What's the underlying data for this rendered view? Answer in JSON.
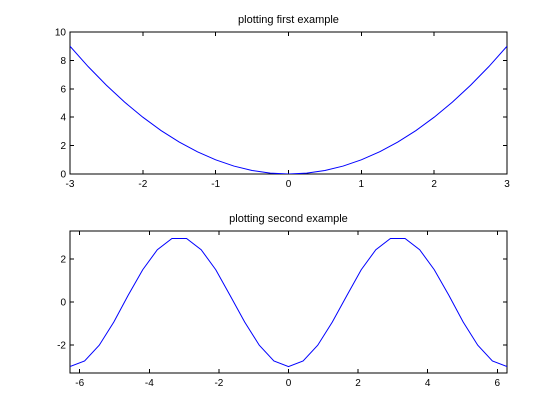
{
  "chart_data": [
    {
      "type": "line",
      "title": "plotting first example",
      "xlabel": "",
      "ylabel": "",
      "xlim": [
        -3,
        3
      ],
      "ylim": [
        0,
        10
      ],
      "grid": false,
      "line_color": "#0000ff",
      "x_ticks": [
        -3,
        -2,
        -1,
        0,
        1,
        2,
        3
      ],
      "y_ticks": [
        0,
        2,
        4,
        6,
        8,
        10
      ],
      "series": [
        {
          "x": [
            -3,
            -2.75,
            -2.5,
            -2.25,
            -2,
            -1.75,
            -1.5,
            -1.25,
            -1,
            -0.75,
            -0.5,
            -0.25,
            0,
            0.25,
            0.5,
            0.75,
            1,
            1.25,
            1.5,
            1.75,
            2,
            2.25,
            2.5,
            2.75,
            3
          ],
          "y": [
            9,
            7.56,
            6.25,
            5.06,
            4,
            3.06,
            2.25,
            1.56,
            1,
            0.56,
            0.25,
            0.06,
            0,
            0.06,
            0.25,
            0.56,
            1,
            1.56,
            2.25,
            3.06,
            4,
            5.06,
            6.25,
            7.56,
            9
          ]
        }
      ]
    },
    {
      "type": "line",
      "title": "plotting second example",
      "xlabel": "",
      "ylabel": "",
      "xlim": [
        -6.28,
        6.28
      ],
      "ylim": [
        -3.3,
        3.3
      ],
      "grid": false,
      "line_color": "#0000ff",
      "x_ticks": [
        -6,
        -4,
        -2,
        0,
        2,
        4,
        6
      ],
      "y_ticks": [
        -2,
        0,
        2
      ],
      "series": [
        {
          "x": [
            -6.28,
            -5.86,
            -5.44,
            -5.02,
            -4.61,
            -4.19,
            -3.77,
            -3.35,
            -2.93,
            -2.51,
            -2.09,
            -1.68,
            -1.26,
            -0.84,
            -0.42,
            0,
            0.42,
            0.84,
            1.26,
            1.68,
            2.09,
            2.51,
            2.93,
            3.35,
            3.77,
            4.19,
            4.61,
            5.02,
            5.44,
            5.86,
            6.28
          ],
          "y": [
            -3,
            -2.74,
            -2.01,
            -0.93,
            0.31,
            1.5,
            2.43,
            2.95,
            2.95,
            2.43,
            1.5,
            0.31,
            -0.93,
            -2.01,
            -2.74,
            -3,
            -2.74,
            -2.01,
            -0.93,
            0.31,
            1.5,
            2.43,
            2.95,
            2.95,
            2.43,
            1.5,
            0.31,
            -0.93,
            -2.01,
            -2.74,
            -3
          ]
        }
      ]
    }
  ]
}
